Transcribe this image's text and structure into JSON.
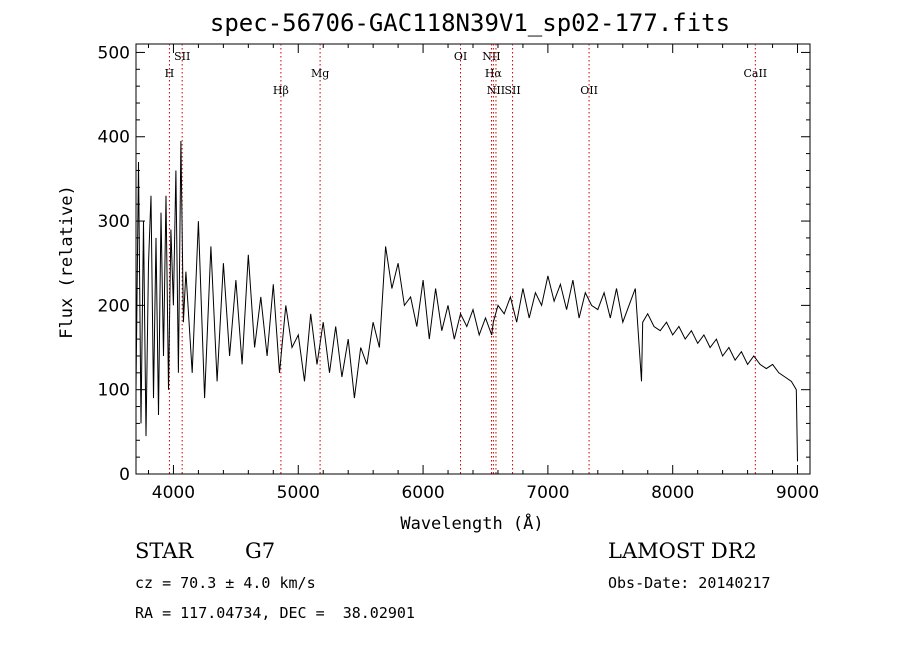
{
  "chart_data": {
    "type": "line",
    "title": "spec-56706-GAC118N39V1_sp02-177.fits",
    "xlabel": "Wavelength (Å)",
    "ylabel": "Flux (relative)",
    "xlim": [
      3700,
      9100
    ],
    "ylim": [
      0,
      510
    ],
    "xticks": [
      4000,
      5000,
      6000,
      7000,
      8000,
      9000
    ],
    "xtick_labels": [
      "4000",
      "5000",
      "6000",
      "7000",
      "8000",
      "9000"
    ],
    "yticks": [
      0,
      100,
      200,
      300,
      400,
      500
    ],
    "ytick_labels": [
      "0",
      "100",
      "200",
      "300",
      "400",
      "500"
    ],
    "grid": false,
    "series": [
      {
        "values_x": [
          3700,
          3720,
          3740,
          3760,
          3780,
          3800,
          3820,
          3840,
          3860,
          3880,
          3900,
          3920,
          3940,
          3960,
          3980,
          4000,
          4020,
          4040,
          4060,
          4080,
          4100,
          4150,
          4200,
          4250,
          4300,
          4350,
          4400,
          4450,
          4500,
          4550,
          4600,
          4650,
          4700,
          4750,
          4800,
          4850,
          4900,
          4950,
          5000,
          5050,
          5100,
          5150,
          5200,
          5250,
          5300,
          5350,
          5400,
          5450,
          5500,
          5550,
          5600,
          5650,
          5700,
          5750,
          5800,
          5850,
          5900,
          5950,
          6000,
          6050,
          6100,
          6150,
          6200,
          6250,
          6300,
          6350,
          6400,
          6450,
          6500,
          6550,
          6563,
          6600,
          6650,
          6700,
          6750,
          6800,
          6850,
          6900,
          6950,
          7000,
          7050,
          7100,
          7150,
          7200,
          7250,
          7300,
          7350,
          7400,
          7450,
          7500,
          7550,
          7600,
          7650,
          7700,
          7750,
          7760,
          7800,
          7850,
          7900,
          7950,
          8000,
          8050,
          8100,
          8150,
          8200,
          8250,
          8300,
          8350,
          8400,
          8450,
          8500,
          8550,
          8600,
          8650,
          8700,
          8750,
          8800,
          8850,
          8900,
          8950,
          8990,
          9000
        ],
        "values_y": [
          100,
          370,
          60,
          300,
          45,
          250,
          330,
          90,
          280,
          70,
          310,
          140,
          330,
          100,
          290,
          200,
          360,
          120,
          395,
          180,
          240,
          120,
          300,
          90,
          270,
          110,
          250,
          140,
          230,
          130,
          260,
          150,
          210,
          140,
          225,
          120,
          200,
          150,
          165,
          110,
          190,
          130,
          180,
          120,
          175,
          115,
          160,
          90,
          150,
          130,
          180,
          150,
          270,
          220,
          250,
          200,
          210,
          175,
          230,
          160,
          220,
          170,
          200,
          160,
          190,
          175,
          195,
          165,
          185,
          165,
          180,
          200,
          190,
          210,
          180,
          220,
          185,
          215,
          200,
          235,
          205,
          225,
          195,
          230,
          185,
          215,
          200,
          195,
          215,
          185,
          220,
          180,
          200,
          220,
          110,
          180,
          190,
          175,
          170,
          180,
          165,
          175,
          160,
          170,
          155,
          165,
          150,
          160,
          140,
          150,
          135,
          145,
          130,
          140,
          130,
          125,
          130,
          120,
          115,
          110,
          100,
          15
        ]
      }
    ],
    "spectral_lines": [
      {
        "label": "H",
        "wavelength": 3968,
        "row": 1
      },
      {
        "label": "SII",
        "wavelength": 4070,
        "row": 0
      },
      {
        "label": "Hβ",
        "wavelength": 4861,
        "row": 2
      },
      {
        "label": "Mg",
        "wavelength": 5175,
        "row": 1
      },
      {
        "label": "OI",
        "wavelength": 6300,
        "row": 0
      },
      {
        "label": "NII",
        "wavelength": 6548,
        "row": 0
      },
      {
        "label": "Hα",
        "wavelength": 6563,
        "row": 1
      },
      {
        "label": "NII",
        "wavelength": 6584,
        "row": 2
      },
      {
        "label": "SII",
        "wavelength": 6717,
        "row": 2
      },
      {
        "label": "OII",
        "wavelength": 7330,
        "row": 2
      },
      {
        "label": "CaII",
        "wavelength": 8662,
        "row": 1
      }
    ]
  },
  "info": {
    "object_class": "STAR",
    "subclass": "G7",
    "survey": "LAMOST DR2",
    "redshift_text": "cz = 70.3 ± 4.0 km/s",
    "obs_date": "Obs-Date: 20140217",
    "coords": "RA = 117.04734, DEC =  38.02901"
  },
  "colors": {
    "line": "#000000",
    "marker_lines": "#cc0000"
  }
}
